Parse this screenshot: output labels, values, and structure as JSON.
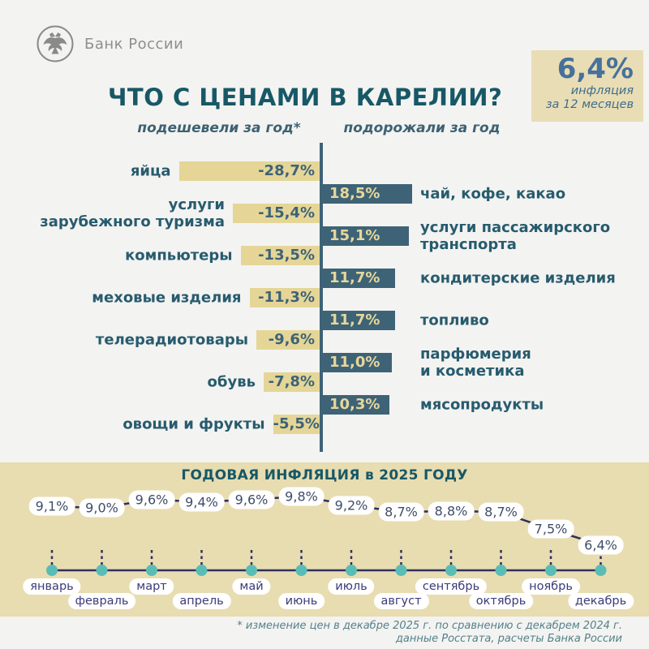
{
  "header": {
    "logo_text": "Банк России",
    "title": "ЧТО С ЦЕНАМИ В КАРЕЛИИ?"
  },
  "badge": {
    "value": "6,4%",
    "caption_line1": "инфляция",
    "caption_line2": "за 12 месяцев"
  },
  "columns": {
    "left_header": "подешевели за год*",
    "right_header": "подорожали за год"
  },
  "chart_data": [
    {
      "type": "bar",
      "orientation": "horizontal-diverging",
      "title": "изменение цен за год",
      "decreased": [
        {
          "label": [
            "яйца"
          ],
          "value": -28.7,
          "value_label": "-28,7%"
        },
        {
          "label": [
            "услуги",
            "зарубежного туризма"
          ],
          "value": -15.4,
          "value_label": "-15,4%"
        },
        {
          "label": [
            "компьютеры"
          ],
          "value": -13.5,
          "value_label": "-13,5%"
        },
        {
          "label": [
            "меховые изделия"
          ],
          "value": -11.3,
          "value_label": "-11,3%"
        },
        {
          "label": [
            "телерадиотовары"
          ],
          "value": -9.6,
          "value_label": "-9,6%"
        },
        {
          "label": [
            "обувь"
          ],
          "value": -7.8,
          "value_label": "-7,8%"
        },
        {
          "label": [
            "овощи и фрукты"
          ],
          "value": -5.5,
          "value_label": "-5,5%"
        }
      ],
      "increased": [
        {
          "label": [
            "чай, кофе, какао"
          ],
          "value": 18.5,
          "value_label": "18,5%"
        },
        {
          "label": [
            "услуги пассажирского",
            "транспорта"
          ],
          "value": 15.1,
          "value_label": "15,1%"
        },
        {
          "label": [
            "кондитерские изделия"
          ],
          "value": 11.7,
          "value_label": "11,7%"
        },
        {
          "label": [
            "топливо"
          ],
          "value": 11.7,
          "value_label": "11,7%"
        },
        {
          "label": [
            "парфюмерия",
            "и косметика"
          ],
          "value": 11.0,
          "value_label": "11,0%"
        },
        {
          "label": [
            "мясопродукты"
          ],
          "value": 10.3,
          "value_label": "10,3%"
        }
      ]
    },
    {
      "type": "line",
      "title": "ГОДОВАЯ ИНФЛЯЦИЯ в 2025 ГОДУ",
      "categories": [
        "январь",
        "февраль",
        "март",
        "апрель",
        "май",
        "июнь",
        "июль",
        "август",
        "сентябрь",
        "октябрь",
        "ноябрь",
        "декабрь"
      ],
      "values": [
        9.1,
        9.0,
        9.6,
        9.4,
        9.6,
        9.8,
        9.2,
        8.7,
        8.8,
        8.7,
        7.5,
        6.4
      ],
      "value_labels": [
        "9,1%",
        "9,0%",
        "9,6%",
        "9,4%",
        "9,6%",
        "9,8%",
        "9,2%",
        "8,7%",
        "8,8%",
        "8,7%",
        "7,5%",
        "6,4%"
      ],
      "ylim": [
        6.0,
        10.2
      ],
      "grid": false,
      "legend": "none"
    }
  ],
  "footnote": {
    "line1": "* изменение цен в декабре 2025 г. по сравнению с декабрем 2024 г.",
    "line2": "данные Росстата, расчеты Банка России"
  },
  "colors": {
    "page_bg": "#f3f3f1",
    "title_teal": "#175866",
    "label_teal": "#275b6e",
    "bar_decrease": "#e5d698",
    "bar_increase": "#3e6376",
    "badge_bg": "#e9ddb5",
    "badge_text": "#46719b",
    "band_bg": "#e8dcb1",
    "line_color": "#312f5f",
    "dot_color": "#5abdb5",
    "pill_value_text": "#3e4d68",
    "pill_month_text": "#3b3a7a",
    "footnote_text": "#55808a"
  }
}
